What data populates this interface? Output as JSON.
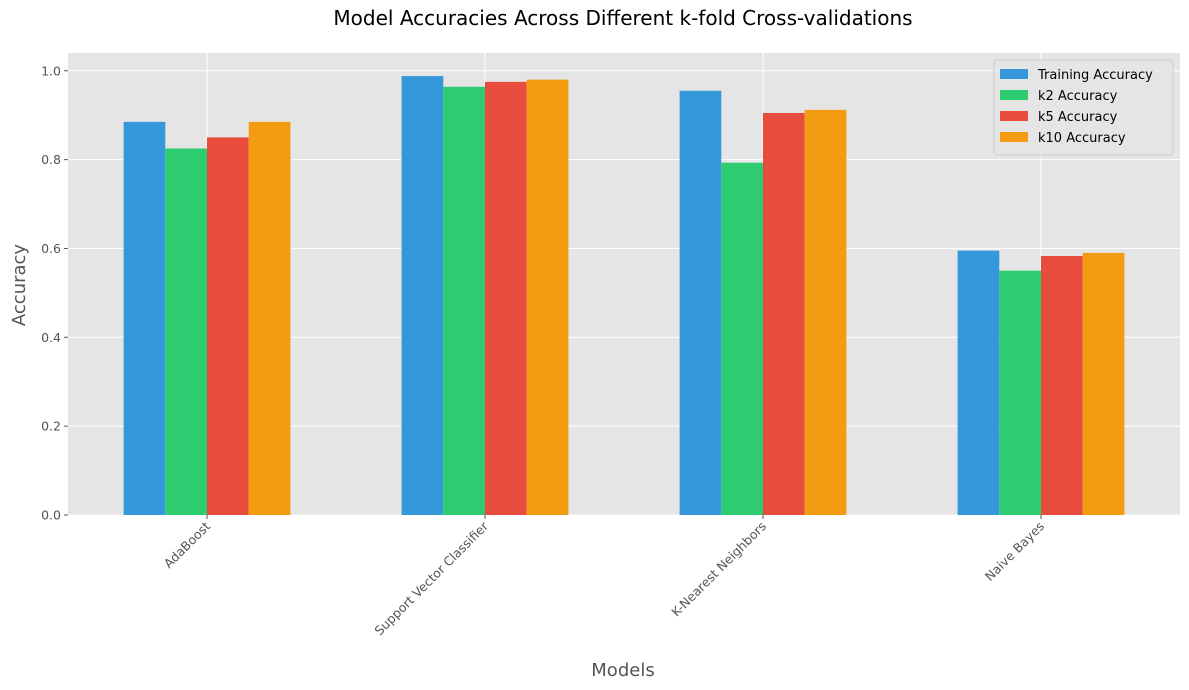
{
  "chart_data": {
    "type": "bar",
    "title": "Model Accuracies Across Different k-fold Cross-validations",
    "xlabel": "Models",
    "ylabel": "Accuracy",
    "categories": [
      "AdaBoost",
      "Support Vector Classifier",
      "K-Nearest Neighbors",
      "Naive Bayes"
    ],
    "series": [
      {
        "name": "Training Accuracy",
        "color": "#3498db",
        "values": [
          0.885,
          0.988,
          0.955,
          0.595
        ]
      },
      {
        "name": "k2 Accuracy",
        "color": "#2ecc71",
        "values": [
          0.825,
          0.964,
          0.793,
          0.55
        ]
      },
      {
        "name": "k5 Accuracy",
        "color": "#e74c3c",
        "values": [
          0.85,
          0.975,
          0.905,
          0.583
        ]
      },
      {
        "name": "k10 Accuracy",
        "color": "#f39c12",
        "values": [
          0.885,
          0.98,
          0.912,
          0.59
        ]
      }
    ],
    "ylim": [
      0,
      1.04
    ],
    "yticks": [
      "0.0",
      "0.2",
      "0.4",
      "0.6",
      "0.8",
      "1.0"
    ],
    "grid": true,
    "legend_position": "top-right",
    "background_color": "#e5e5e5",
    "grid_color": "#ffffff",
    "tick_label_rotation": 45
  }
}
